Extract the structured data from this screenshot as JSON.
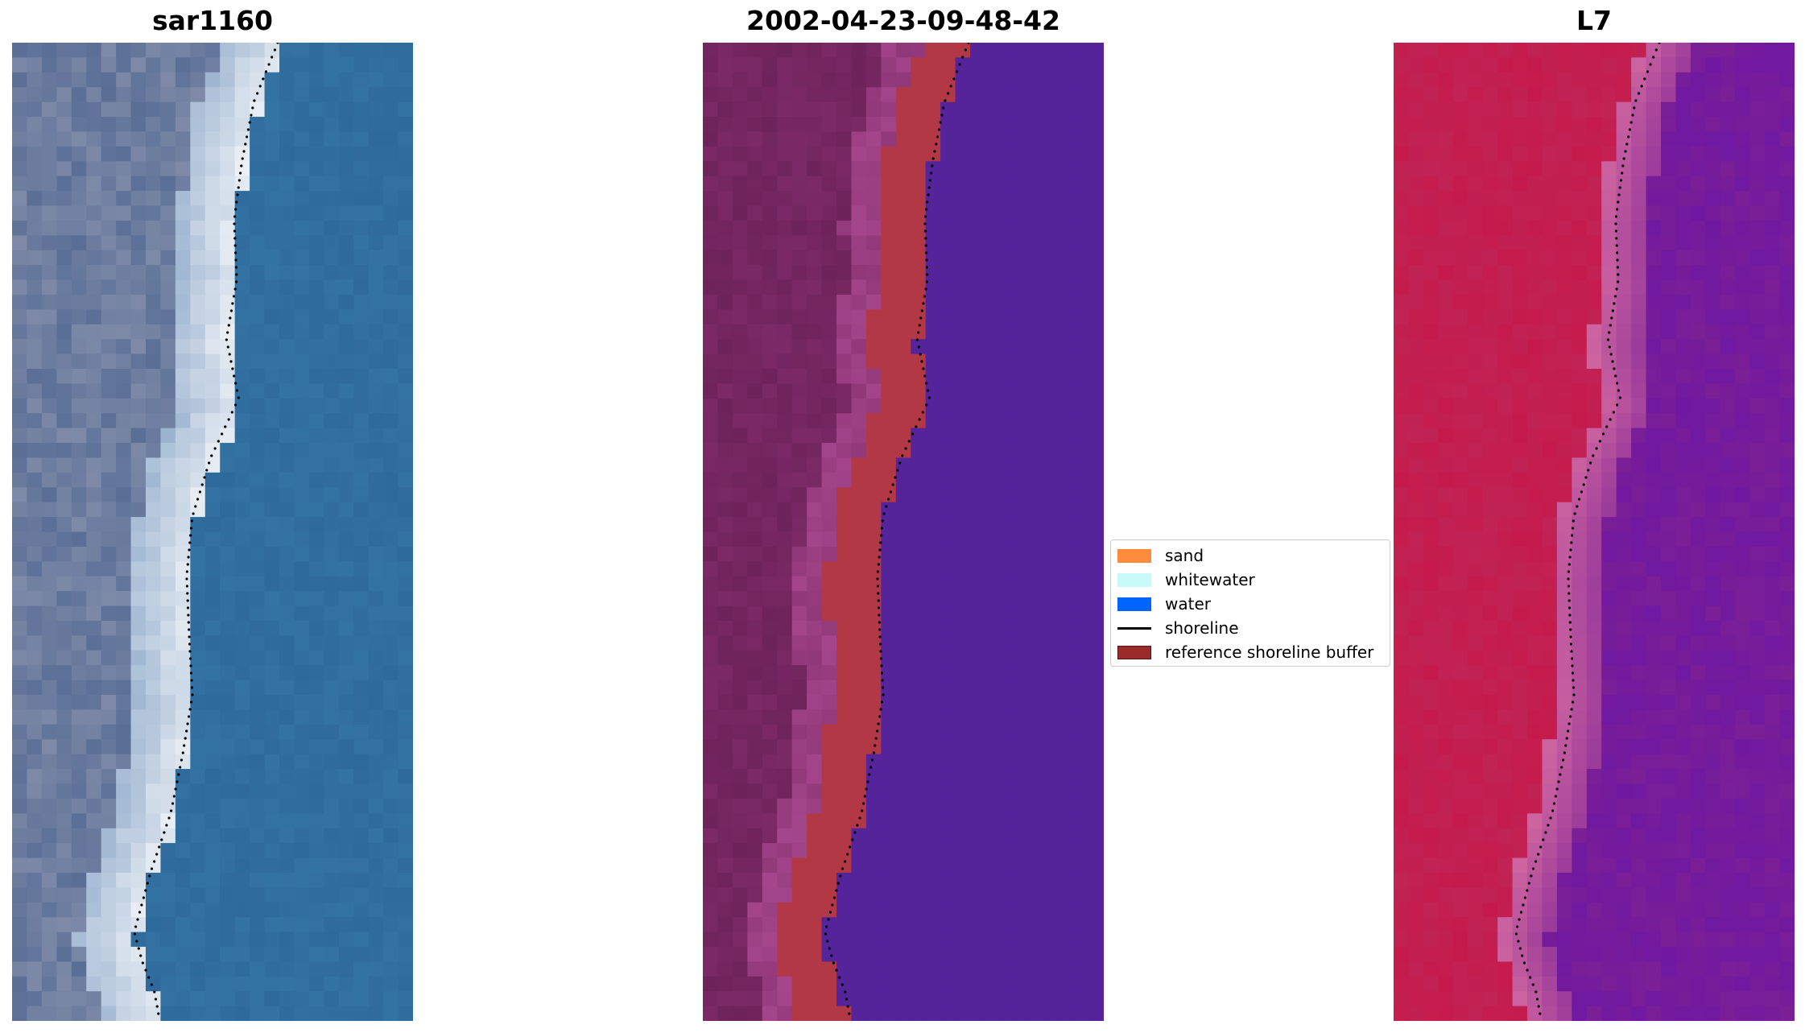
{
  "panels": [
    {
      "title": "sar1160",
      "kind": "rgb"
    },
    {
      "title": "2002-04-23-09-48-42",
      "kind": "classified"
    },
    {
      "title": "L7",
      "kind": "index"
    }
  ],
  "legend": {
    "items": [
      {
        "label": "sand",
        "color": "#ff8c3c"
      },
      {
        "label": "whitewater",
        "color": "#c8fafa"
      },
      {
        "label": "water",
        "color": "#0064ff"
      },
      {
        "label": "shoreline",
        "color": "#000000"
      },
      {
        "label": "reference shoreline buffer",
        "color": "#9b2a2a"
      }
    ]
  },
  "colors": {
    "water_rgb": "#2e6a9c",
    "water_class": "#55239a",
    "buffer_class": "#b33845",
    "land_class": "#7c2a66",
    "land_index": "#c51b4c",
    "water_index": "#7a1f96"
  }
}
